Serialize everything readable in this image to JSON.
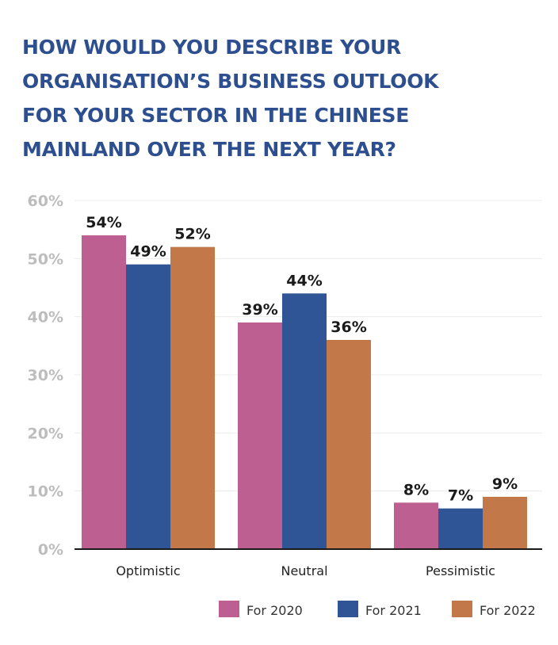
{
  "chart_data": {
    "type": "bar",
    "title_lines": [
      "HOW WOULD YOU DESCRIBE YOUR",
      "ORGANISATION’S BUSINESS OUTLOOK",
      "FOR YOUR SECTOR IN THE CHINESE",
      "MAINLAND OVER THE NEXT YEAR?"
    ],
    "categories": [
      "Optimistic",
      "Neutral",
      "Pessimistic"
    ],
    "series": [
      {
        "name": "For 2020",
        "color": "#bd5f91",
        "values": [
          54,
          39,
          8
        ]
      },
      {
        "name": "For 2021",
        "color": "#2f5596",
        "values": [
          49,
          44,
          7
        ]
      },
      {
        "name": "For 2022",
        "color": "#c27848",
        "values": [
          52,
          36,
          9
        ]
      }
    ],
    "ylim": [
      0,
      60
    ],
    "yticks": [
      0,
      10,
      20,
      30,
      40,
      50,
      60
    ],
    "ytick_suffix": "%",
    "value_suffix": "%",
    "grid": true,
    "legend_position": "bottom-right",
    "xlabel": "",
    "ylabel": ""
  }
}
